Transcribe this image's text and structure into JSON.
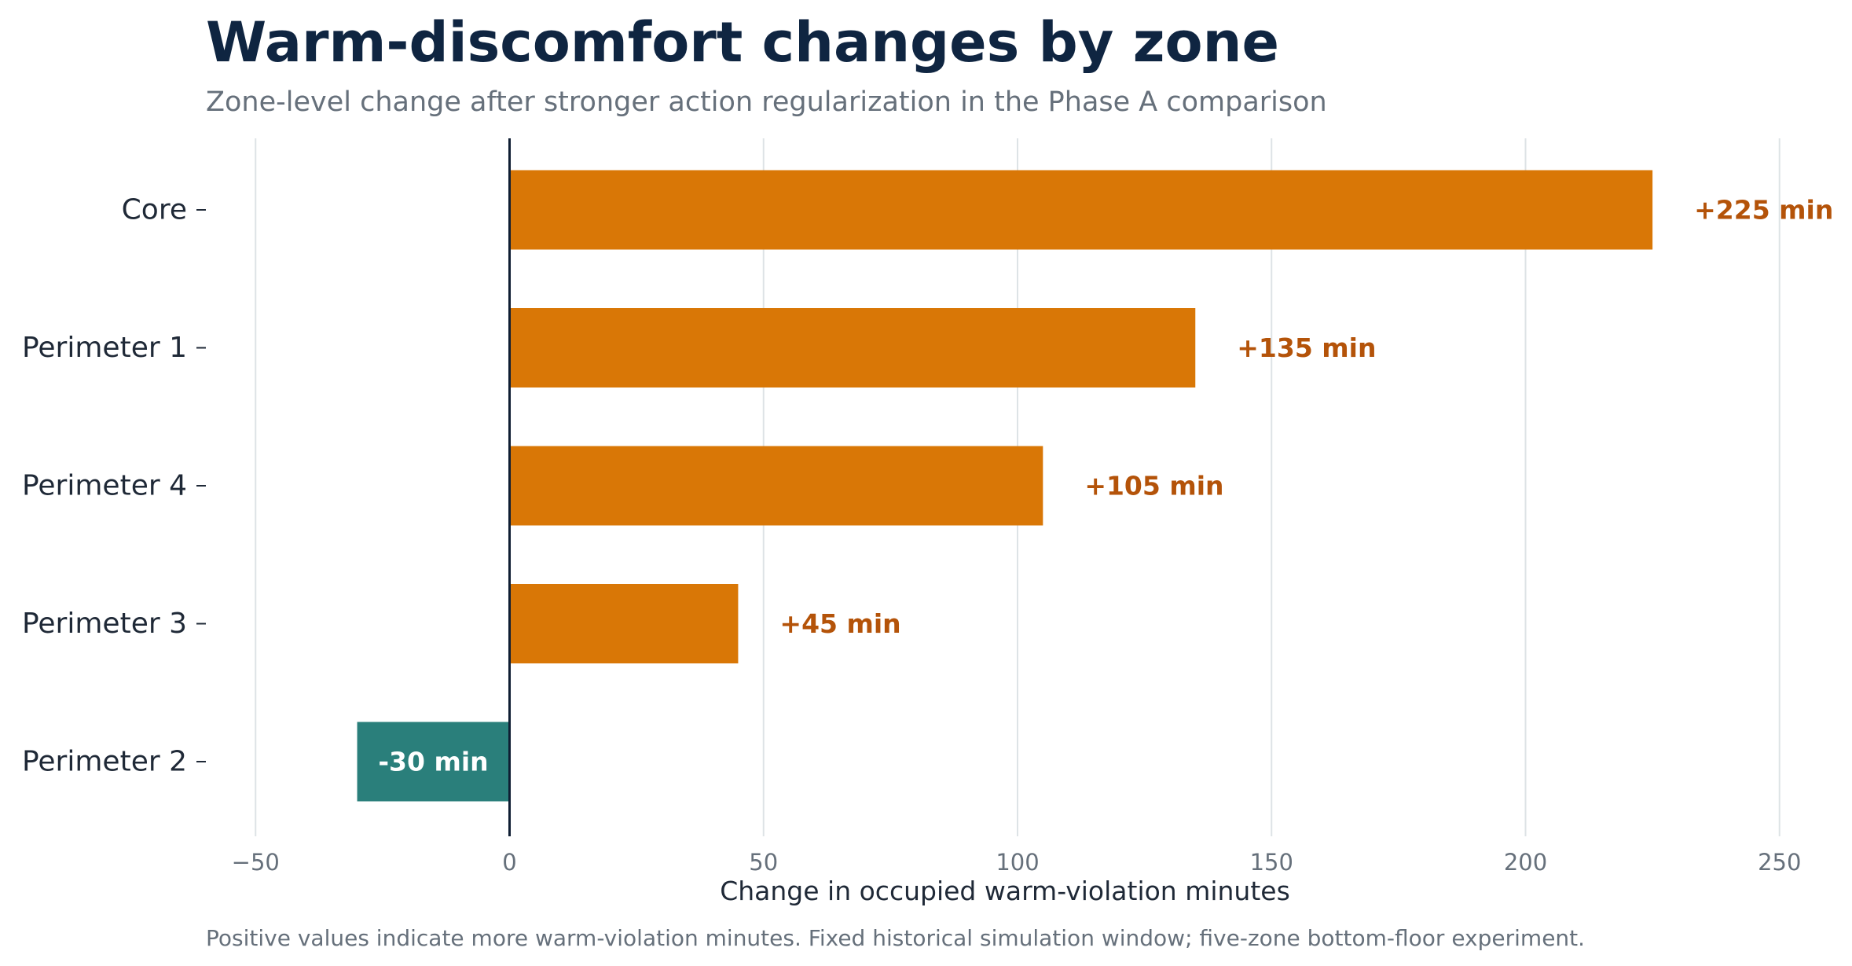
{
  "colors": {
    "title": "#0f2541",
    "subtitle": "#66707b",
    "positive_bar": "#d97706",
    "negative_bar": "#2a7f7b",
    "positive_label": "#b45309",
    "negative_label": "#ffffff",
    "grid": "#dde3e6",
    "zero_line": "#0f1e33",
    "tick_label": "#66707b",
    "category_label": "#1f2937",
    "axis_label": "#1f2937"
  },
  "chart_data": {
    "type": "bar",
    "orientation": "horizontal",
    "title": "Warm-discomfort changes by zone",
    "subtitle": "Zone-level change after stronger action regularization in the Phase A comparison",
    "xlabel": "Change in occupied warm-violation minutes",
    "ylabel": "",
    "footnote": "Positive values indicate more warm-violation minutes. Fixed historical simulation window; five-zone bottom-floor experiment.",
    "categories": [
      "Core",
      "Perimeter 1",
      "Perimeter 4",
      "Perimeter 3",
      "Perimeter 2"
    ],
    "values": [
      225,
      135,
      105,
      45,
      -30
    ],
    "data_labels": [
      "+225 min",
      "+135 min",
      "+105 min",
      "+45 min",
      "-30 min"
    ],
    "xlim": [
      -55,
      255
    ],
    "xticks": [
      -50,
      0,
      50,
      100,
      150,
      200,
      250
    ],
    "xtick_labels": [
      "−50",
      "0",
      "50",
      "100",
      "150",
      "200",
      "250"
    ],
    "grid": "vertical",
    "legend": "none"
  }
}
